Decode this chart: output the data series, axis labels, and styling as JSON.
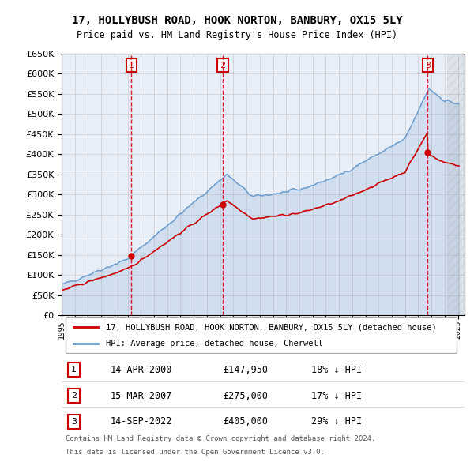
{
  "title": "17, HOLLYBUSH ROAD, HOOK NORTON, BANBURY, OX15 5LY",
  "subtitle": "Price paid vs. HM Land Registry's House Price Index (HPI)",
  "legend_line1": "17, HOLLYBUSH ROAD, HOOK NORTON, BANBURY, OX15 5LY (detached house)",
  "legend_line2": "HPI: Average price, detached house, Cherwell",
  "transactions": [
    {
      "num": 1,
      "date": "14-APR-2000",
      "price": "£147,950",
      "pct": "18% ↓ HPI",
      "year": 2000.29
    },
    {
      "num": 2,
      "date": "15-MAR-2007",
      "price": "£275,000",
      "pct": "17% ↓ HPI",
      "year": 2007.21
    },
    {
      "num": 3,
      "date": "14-SEP-2022",
      "price": "£405,000",
      "pct": "29% ↓ HPI",
      "year": 2022.71
    }
  ],
  "footnote1": "Contains HM Land Registry data © Crown copyright and database right 2024.",
  "footnote2": "This data is licensed under the Open Government Licence v3.0.",
  "background_color": "#ffffff",
  "grid_color": "#cccccc",
  "plot_bg": "#e8eef8",
  "red_line_color": "#cc0000",
  "blue_line_color": "#6699cc",
  "marker_box_color": "#cc0000",
  "dashed_line_color": "#cc0000",
  "ylim": [
    0,
    650000
  ],
  "yticks": [
    0,
    50000,
    100000,
    150000,
    200000,
    250000,
    300000,
    350000,
    400000,
    450000,
    500000,
    550000,
    600000,
    650000
  ],
  "xlim_start": 1995,
  "xlim_end": 2025.5
}
